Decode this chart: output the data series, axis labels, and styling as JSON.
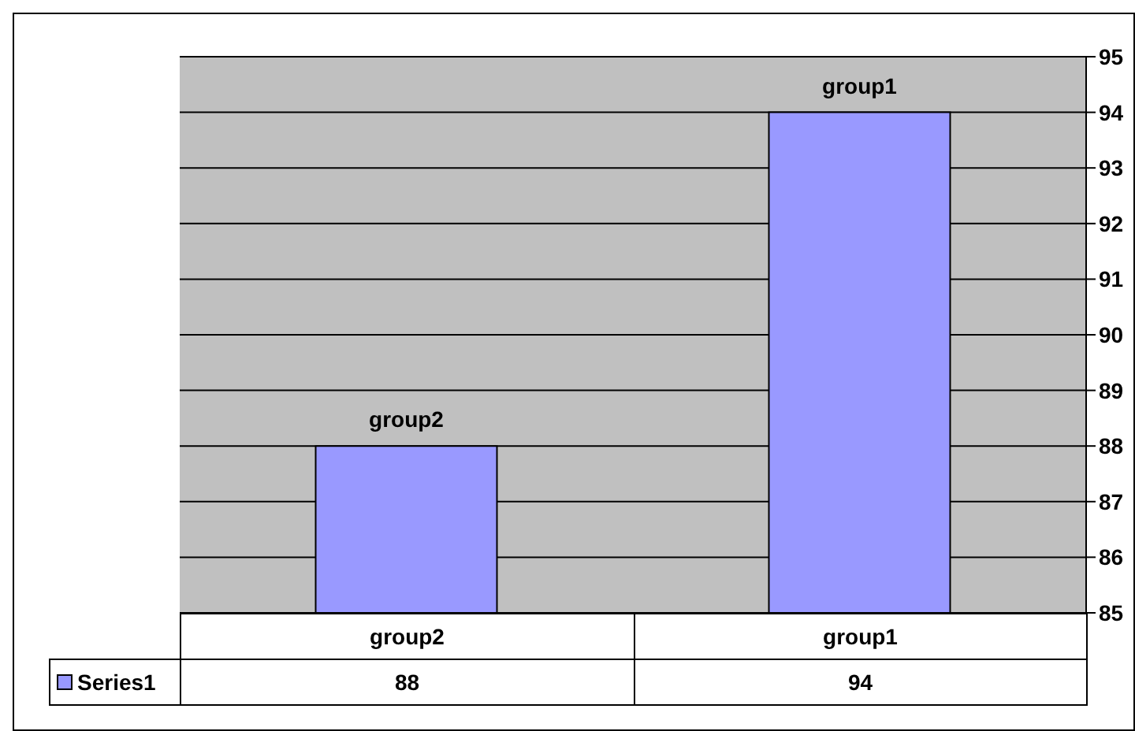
{
  "chart_data": {
    "type": "bar",
    "categories": [
      "group2",
      "group1"
    ],
    "series": [
      {
        "name": "Series1",
        "color": "#9999ff",
        "values": [
          88,
          94
        ]
      }
    ],
    "ylim": [
      85,
      95
    ],
    "yticks": [
      85,
      86,
      87,
      88,
      89,
      90,
      91,
      92,
      93,
      94,
      95
    ],
    "grid": "y",
    "legend": "bottom left",
    "data_labels": true,
    "annotations": [
      {
        "text": "group2",
        "x": "group2",
        "y": 88
      },
      {
        "text": "group1",
        "x": "group1",
        "y": 94
      }
    ]
  }
}
